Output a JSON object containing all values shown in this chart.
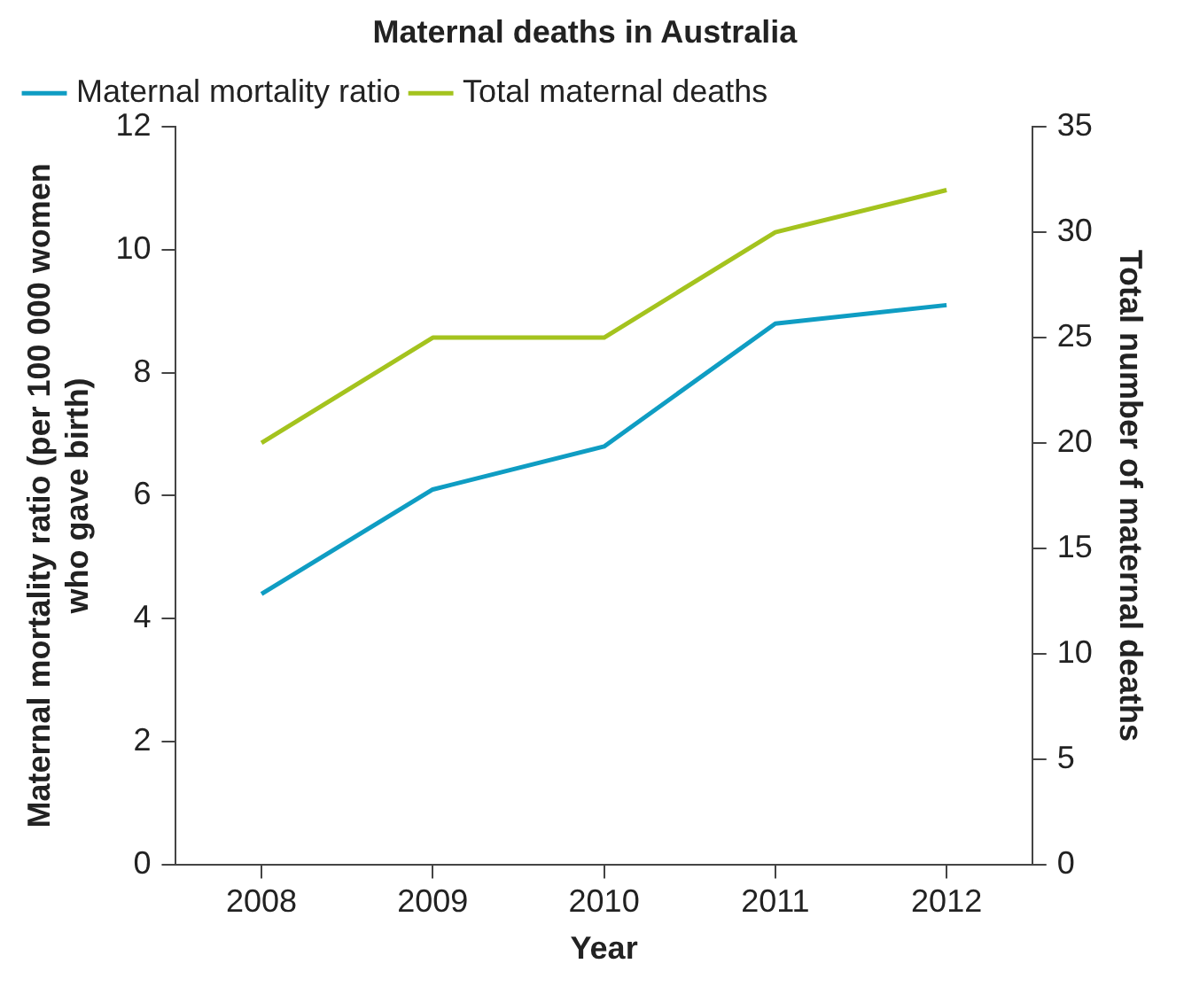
{
  "chart_data": {
    "type": "line",
    "title": "Maternal deaths in Australia",
    "xlabel": "Year",
    "ylabel": "Maternal mortality ratio (per 100 000 women who gave birth)",
    "y2label": "Total number of maternal deaths",
    "categories": [
      "2008",
      "2009",
      "2010",
      "2011",
      "2012"
    ],
    "series": [
      {
        "name": "Maternal mortality ratio",
        "color": "#0f9dc3",
        "values": [
          4.4,
          6.1,
          6.8,
          8.8,
          9.1
        ]
      },
      {
        "name": "Total maternal deaths",
        "color": "#a4c31e",
        "values": [
          20,
          25,
          25,
          30,
          32
        ],
        "axis": "y2"
      }
    ],
    "ylim": [
      0,
      12
    ],
    "yticks": [
      0,
      2,
      4,
      6,
      8,
      10,
      12
    ],
    "y2lim": [
      0,
      35
    ],
    "y2ticks": [
      0,
      5,
      10,
      15,
      20,
      25,
      30,
      35
    ],
    "grid": false,
    "legend": "top left",
    "marker": "none",
    "line_style": "solid"
  }
}
